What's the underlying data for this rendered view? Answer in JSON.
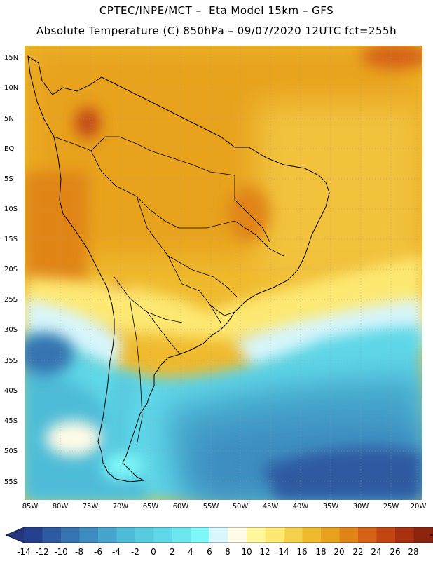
{
  "title_line1": "CPTEC/INPE/MCT –  Eta Model 15km – GFS",
  "title_line2": "Absolute Temperature (C) 850hPa – 09/07/2020 12UTC fct=255h",
  "y_axis_labels": [
    "15N",
    "10N",
    "5N",
    "EQ",
    "5S",
    "10S",
    "15S",
    "20S",
    "25S",
    "30S",
    "35S",
    "40S",
    "45S",
    "50S",
    "55S"
  ],
  "x_axis_labels": [
    "85W",
    "80W",
    "75W",
    "70W",
    "65W",
    "60W",
    "55W",
    "50W",
    "45W",
    "40W",
    "35W",
    "30W",
    "25W",
    "20W"
  ],
  "colorbar": {
    "labels": [
      "-14",
      "-12",
      "-10",
      "-8",
      "-6",
      "-4",
      "-2",
      "0",
      "2",
      "4",
      "6",
      "8",
      "10",
      "12",
      "14",
      "16",
      "18",
      "20",
      "22",
      "24",
      "26",
      "28"
    ],
    "colors": [
      "#25408f",
      "#2d5aa0",
      "#3573b1",
      "#3d8dc0",
      "#45a5cc",
      "#4dbcd8",
      "#56cbe0",
      "#5fd7e8",
      "#6ee6f0",
      "#7df7f8",
      "#d8f6fb",
      "#fffbe6",
      "#fff79a",
      "#fde872",
      "#f6d24c",
      "#efba2e",
      "#e8a21f",
      "#e08418",
      "#d66215",
      "#c24612",
      "#a8320f",
      "#8c2410",
      "#7a1a12"
    ],
    "under_color": "#22357d",
    "over_color": "#6e0a1e"
  },
  "map": {
    "projection": "lat-lon",
    "lon_range": [
      -86,
      -19
    ],
    "lat_range": [
      -58,
      16
    ]
  }
}
